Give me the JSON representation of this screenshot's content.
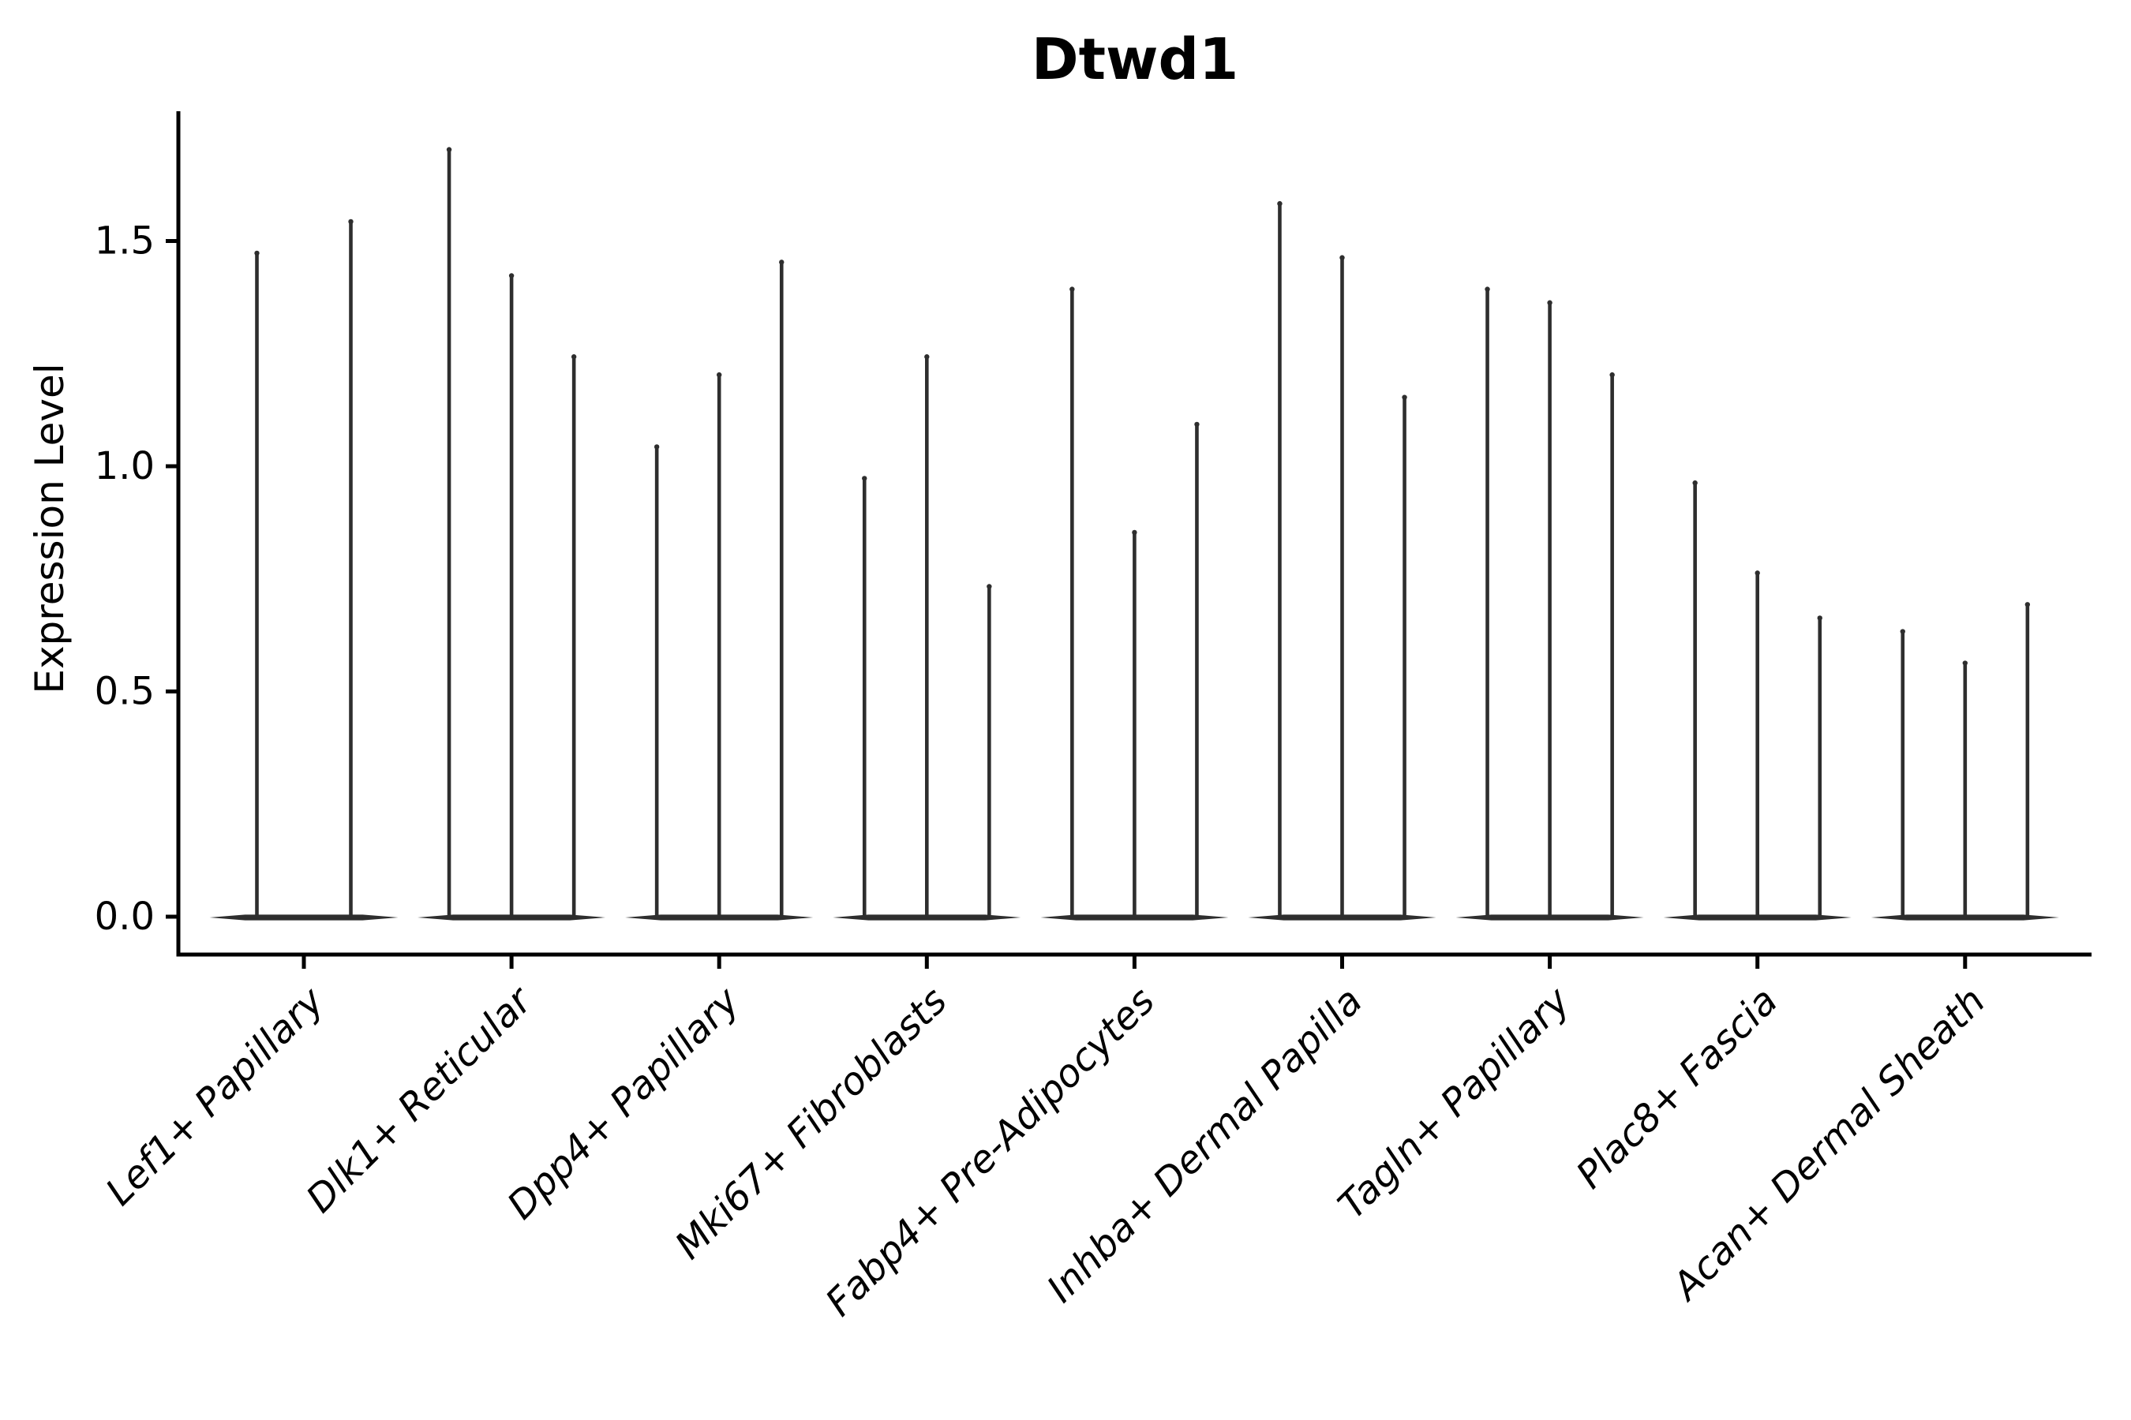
{
  "chart_data": {
    "type": "violin",
    "title": "Dtwd1",
    "ylabel": "Expression Level",
    "xlabel": "",
    "yticks": [
      0.0,
      0.5,
      1.0,
      1.5
    ],
    "ytick_labels": [
      "0.0",
      "0.5",
      "1.0",
      "1.5"
    ],
    "ylim": [
      -0.08,
      1.79
    ],
    "grid": false,
    "legend": false,
    "categories": [
      "Lef1+ Papillary",
      "Dlk1+ Reticular",
      "Dpp4+ Papillary",
      "Mki67+ Fibroblasts",
      "Fabp4+ Pre-Adipocytes",
      "Inhba+ Dermal Papilla",
      "Tagln+ Papillary",
      "Plac8+ Fascia",
      "Acan+ Dermal Sheath"
    ],
    "violin_max": [
      [
        1.48,
        1.55
      ],
      [
        1.71,
        1.43,
        1.25
      ],
      [
        1.05,
        1.21,
        1.46
      ],
      [
        0.98,
        1.25,
        0.74
      ],
      [
        1.4,
        0.86,
        1.1
      ],
      [
        1.59,
        1.47,
        1.16
      ],
      [
        1.4,
        1.37,
        1.21
      ],
      [
        0.97,
        0.77,
        0.67
      ],
      [
        0.64,
        0.57,
        0.7
      ]
    ],
    "violin_color": "#2e2e2e",
    "axis_color": "#000000",
    "text_color": "#000000",
    "background_color": "#ffffff"
  }
}
